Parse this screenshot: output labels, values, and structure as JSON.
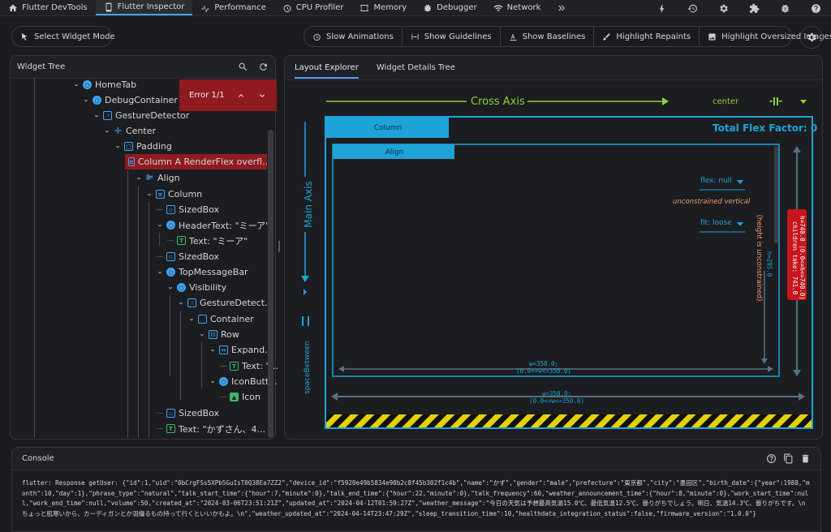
{
  "topbar": {
    "tabs": [
      {
        "label": "Flutter DevTools",
        "icon": "home-icon"
      },
      {
        "label": "Flutter Inspector",
        "icon": "phone-icon",
        "active": true
      },
      {
        "label": "Performance",
        "icon": "performance-icon"
      },
      {
        "label": "CPU Profiler",
        "icon": "timer-icon"
      },
      {
        "label": "Memory",
        "icon": "memory-icon"
      },
      {
        "label": "Debugger",
        "icon": "bug-icon"
      },
      {
        "label": "Network",
        "icon": "wifi-icon"
      }
    ],
    "more_icon": "chevrons-right-icon",
    "right_icons": [
      "bolt-icon",
      "history-icon",
      "settings-icon",
      "extension-icon",
      "bug-report-icon",
      "help-icon"
    ]
  },
  "toolbar": {
    "select_widget_mode": "Select Widget Mode",
    "options": [
      "Slow Animations",
      "Show Guidelines",
      "Show Baselines",
      "Highlight Repaints",
      "Highlight Oversized Images"
    ]
  },
  "widget_tree": {
    "title": "Widget Tree",
    "error_banner": "Error 1/1",
    "rows": [
      {
        "label": "HomeTab",
        "icon": "circle"
      },
      {
        "label": "DebugContainer",
        "icon": "circle"
      },
      {
        "label": "GestureDetector",
        "icon": "tap"
      },
      {
        "label": "Center",
        "icon": "center"
      },
      {
        "label": "Padding",
        "icon": "padding"
      },
      {
        "label": "Column A RenderFlex overfl...",
        "icon": "column",
        "error": true
      },
      {
        "label": "Align",
        "icon": "align"
      },
      {
        "label": "Column",
        "icon": "column"
      },
      {
        "label": "SizedBox",
        "icon": "box"
      },
      {
        "label": "HeaderText: \"ミーア\"",
        "icon": "circle"
      },
      {
        "label": "Text: \"ミーア\"",
        "icon": "text"
      },
      {
        "label": "SizedBox",
        "icon": "box"
      },
      {
        "label": "TopMessageBar",
        "icon": "circle"
      },
      {
        "label": "Visibility",
        "icon": "circle"
      },
      {
        "label": "GestureDetect...",
        "icon": "tap"
      },
      {
        "label": "Container",
        "icon": "container"
      },
      {
        "label": "Row",
        "icon": "row"
      },
      {
        "label": "Expand...",
        "icon": "expand"
      },
      {
        "label": "Text: \"...",
        "icon": "text"
      },
      {
        "label": "IconButt...",
        "icon": "circle"
      },
      {
        "label": "Icon",
        "icon": "image"
      },
      {
        "label": "SizedBox",
        "icon": "box"
      },
      {
        "label": "Text: \"かずさん、4...",
        "icon": "text"
      }
    ]
  },
  "layout_explorer": {
    "tabs": [
      "Layout Explorer",
      "Widget Details Tree"
    ],
    "cross_axis": "Cross Axis",
    "cross_alignment": "center",
    "main_axis": "Main Axis",
    "main_alignment": "spaceBetween",
    "parent": "Column",
    "total_flex": "Total Flex Factor: 0",
    "child": "Align",
    "flex": "flex: null",
    "unconstrained": "unconstrained vertical",
    "fit": "fit: loose",
    "height_note": "(height is unconstrained)",
    "h_inner": "h=295.0",
    "w_inner_1": "w=350.0;",
    "w_inner_2": "(0.0<=w<=350.0)",
    "w_outer_1": "w=350.0;",
    "w_outer_2": "(0.0<=w<=350.0)",
    "h_outer_1": "h=740.0 (0.0<=h<=740.0)",
    "h_outer_2": "children take: 741.0"
  },
  "console": {
    "title": "Console",
    "text": "flutter: Response getUser: {\"id\":1,\"uid\":\"0bCrgFSs5XPb5GuIsT0Q38Ea7ZZ2\",\"device_id\":\"f5920e49b5834e90b2c8f45b302f1c4b\",\"name\":\"かず\",\"gender\":\"male\",\"prefecture\":\"東京都\",\"city\":\"墨田区\",\"birth_date\":{\"year\":1988,\"month\":10,\"day\":1},\"phrase_type\":\"natural\",\"talk_start_time\":{\"hour\":7,\"minute\":0},\"talk_end_time\":{\"hour\":22,\"minute\":0},\"talk_frequency\":60,\"weather_announcement_time\":{\"hour\":8,\"minute\":0},\"work_start_time\":null,\"work_end_time\":null,\"volume\":50,\"created_at\":\"2024-03-06T23:51:21Z\",\"updated_at\":\"2024-04-12T01:59:27Z\",\"weather_message\":\"今日の天気は予想最高気温15.0℃、最低気温12.5℃、曇りがちでしょう。明日、気温14.3℃、曇りがちです。\\nちょっと肌寒いから、カーディガンとか羽織るもの持って行くといいかもよ。\\n\",\"weather_updated_at\":\"2024-04-14T23:47:29Z\",\"sleep_transition_time\":10,\"healthdata_integration_status\":false,\"firmware_version\":\"1.0.0\"}"
  },
  "colors": {
    "accent": "#4fa0ee",
    "error": "#8f1b20",
    "cyan": "#1ea3d8",
    "green": "#8dd13b",
    "stripe": "#e4d200"
  }
}
